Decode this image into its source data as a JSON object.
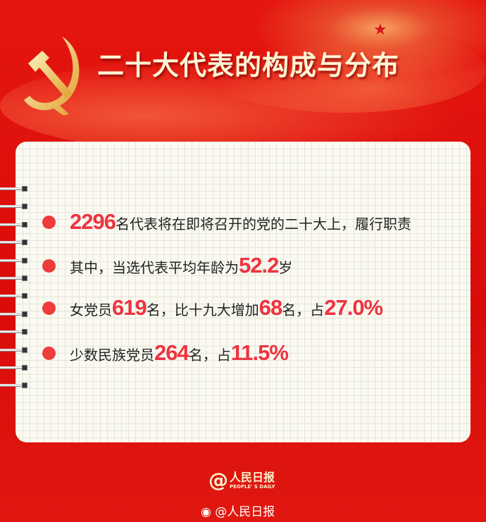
{
  "header": {
    "title": "二十大代表的构成与分布",
    "emblem_icon": "hammer-sickle-icon"
  },
  "items": [
    {
      "parts": [
        {
          "n": "2296"
        },
        {
          "t": "名代表将在即将召开的党的二十大上，履行职责"
        }
      ]
    },
    {
      "parts": [
        {
          "t": "其中，当选代表平均年龄为"
        },
        {
          "n": "52.2"
        },
        {
          "t": "岁"
        }
      ]
    },
    {
      "parts": [
        {
          "t": "女党员"
        },
        {
          "n": "619"
        },
        {
          "t": "名，比十九大增加"
        },
        {
          "n": "68"
        },
        {
          "t": "名，占"
        },
        {
          "n": "27.0%"
        }
      ]
    },
    {
      "parts": [
        {
          "t": "少数民族党员"
        },
        {
          "n": "264"
        },
        {
          "t": "名，占"
        },
        {
          "n": "11.5%"
        }
      ]
    }
  ],
  "footer": {
    "logo_cn": "人民日报",
    "logo_en": "PEOPLE' S DAILY",
    "logo_at": "@",
    "weibo": "@人民日报"
  },
  "colors": {
    "background": "#d90c0a",
    "accent": "#ee3340",
    "title": "#fff6d6"
  }
}
